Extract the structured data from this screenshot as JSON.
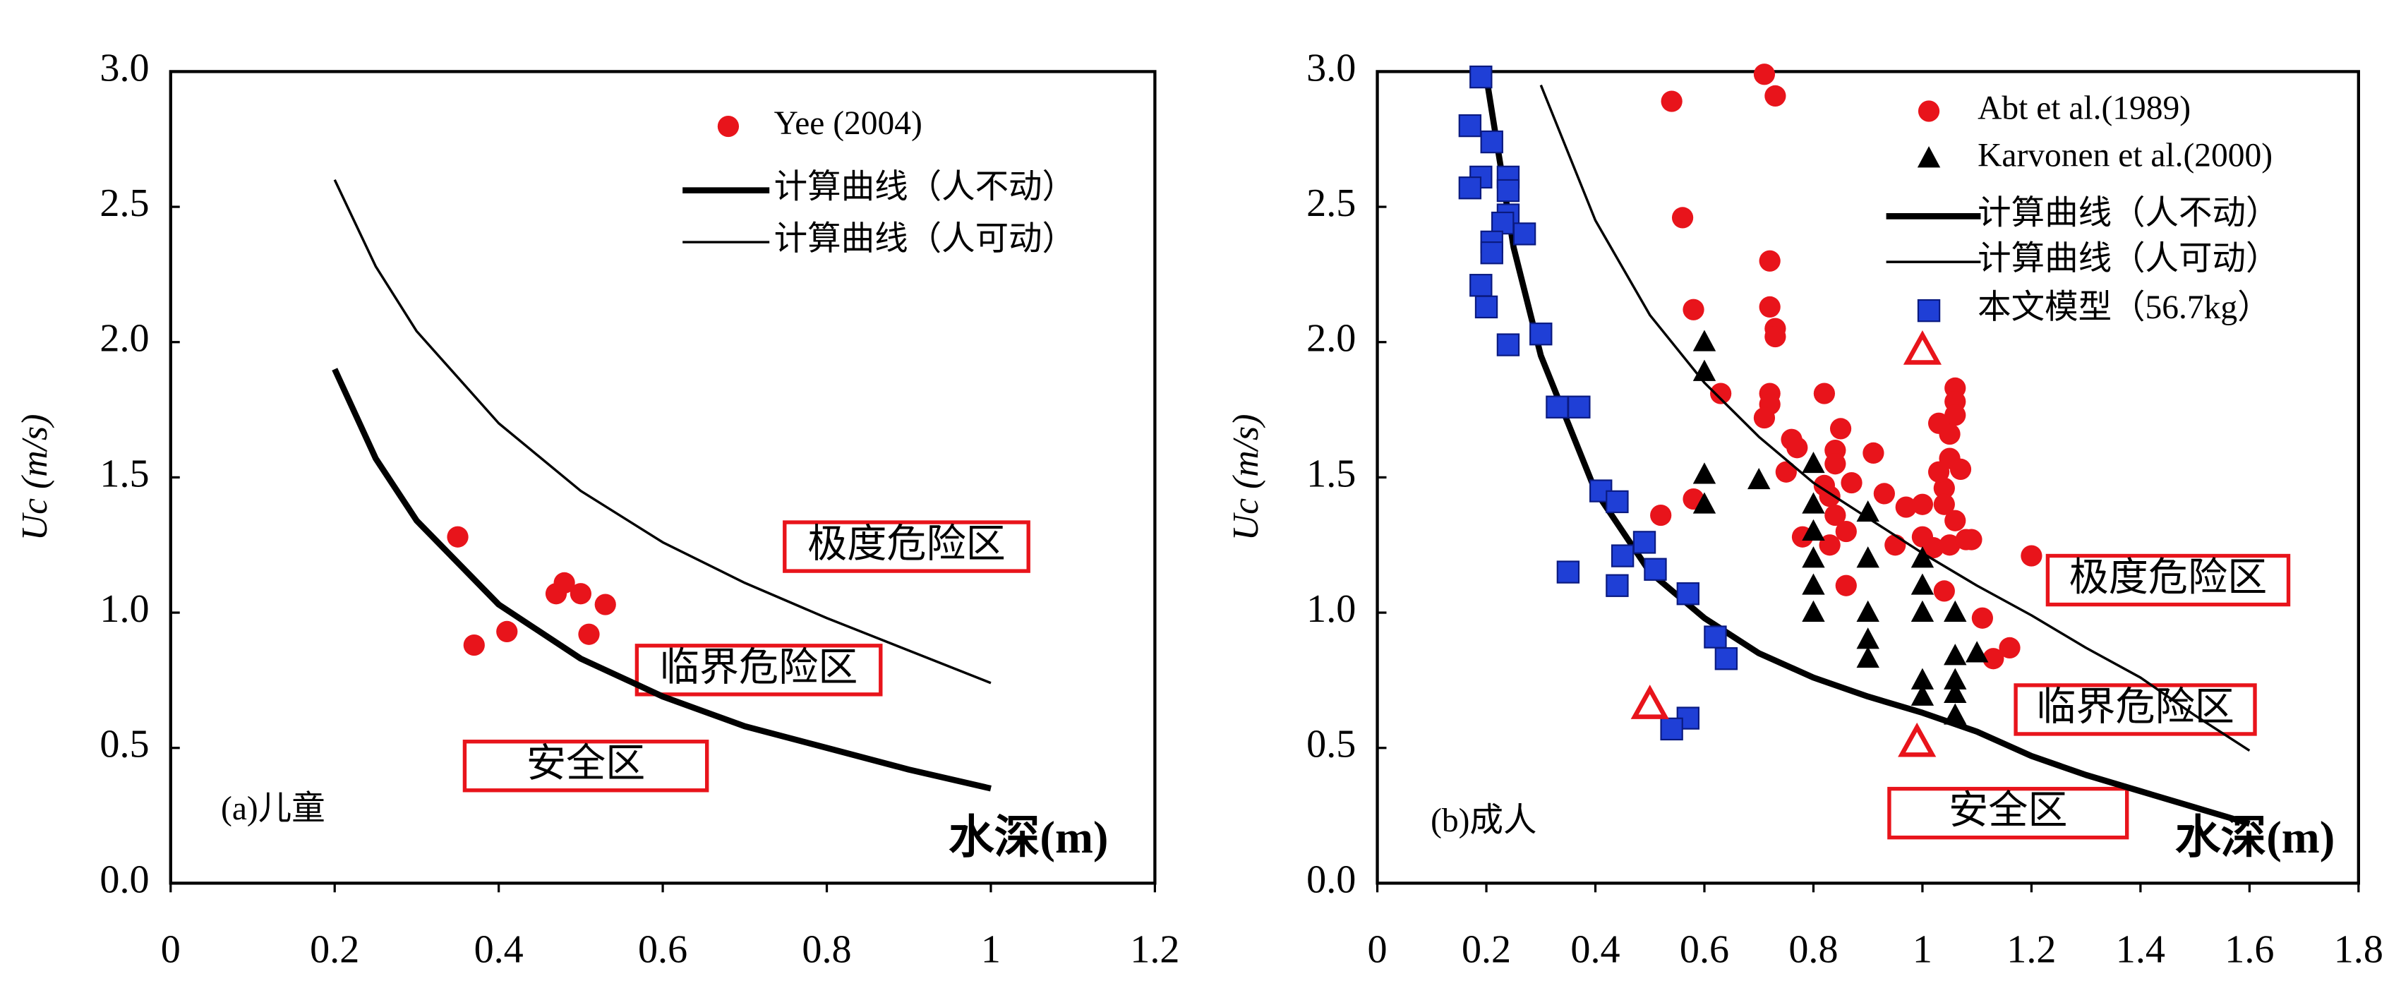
{
  "chart_data": [
    {
      "type": "scatter",
      "ylabel": "Uc (m/s)",
      "xlabel": "水深(m)",
      "panel_label": "(a)儿童",
      "zones": [
        "极度危险区",
        "临界危险区",
        "安全区"
      ],
      "zone_color": "#e8141b",
      "xlim": [
        0,
        1.2
      ],
      "xticks": [
        0,
        0.2,
        0.4,
        0.6,
        0.8,
        1,
        1.2
      ],
      "ylim": [
        0,
        3.0
      ],
      "yticks": [
        {
          "value": 0,
          "label": "0.0"
        },
        0.5,
        {
          "value": 1,
          "label": "1.0"
        },
        1.5,
        {
          "value": 2,
          "label": "2.0"
        },
        2.5,
        {
          "value": 3,
          "label": "3.0"
        }
      ],
      "series": [
        {
          "name": "Yee (2004)",
          "style": "circle",
          "color": "#e8141b",
          "x": [
            0.35,
            0.37,
            0.41,
            0.47,
            0.48,
            0.5,
            0.51,
            0.53
          ],
          "values": [
            1.28,
            0.88,
            0.93,
            1.07,
            1.11,
            1.07,
            0.92,
            1.03
          ]
        },
        {
          "name": "计算曲线（人不动）",
          "style": "line",
          "width": 4,
          "color": "#000000",
          "x": [
            0.2,
            0.25,
            0.3,
            0.4,
            0.5,
            0.6,
            0.7,
            0.8,
            0.9,
            1.0
          ],
          "values": [
            1.9,
            1.57,
            1.34,
            1.03,
            0.83,
            0.69,
            0.58,
            0.5,
            0.42,
            0.35
          ]
        },
        {
          "name": "计算曲线（人可动）",
          "style": "line",
          "width": 1.6,
          "color": "#000000",
          "x": [
            0.2,
            0.25,
            0.3,
            0.4,
            0.5,
            0.6,
            0.7,
            0.8,
            0.9,
            1.0
          ],
          "values": [
            2.6,
            2.28,
            2.04,
            1.7,
            1.45,
            1.26,
            1.11,
            0.98,
            0.86,
            0.74
          ]
        }
      ]
    },
    {
      "type": "scatter",
      "ylabel": "Uc (m/s)",
      "xlabel": "水深(m)",
      "panel_label": "(b)成人",
      "zones": [
        "极度危险区",
        "临界危险区",
        "安全区"
      ],
      "zone_color": "#e8141b",
      "xlim": [
        0,
        1.8
      ],
      "xticks": [
        0,
        0.2,
        0.4,
        0.6,
        0.8,
        1,
        1.2,
        1.4,
        1.6,
        1.8
      ],
      "ylim": [
        0,
        3.0
      ],
      "yticks": [
        {
          "value": 0,
          "label": "0.0"
        },
        0.5,
        {
          "value": 1,
          "label": "1.0"
        },
        1.5,
        {
          "value": 2,
          "label": "2.0"
        },
        2.5,
        {
          "value": 3,
          "label": "3.0"
        }
      ],
      "series": [
        {
          "name": "Abt et al.(1989)",
          "style": "circle",
          "color": "#e8141b",
          "x": [
            0.71,
            0.54,
            0.73,
            0.56,
            0.72,
            0.72,
            0.73,
            0.73,
            0.58,
            0.63,
            0.72,
            0.72,
            0.71,
            0.82,
            0.76,
            0.77,
            0.85,
            0.84,
            0.91,
            0.84,
            0.75,
            0.82,
            0.87,
            0.93,
            0.97,
            1.0,
            0.58,
            0.52,
            0.83,
            0.84,
            0.86,
            0.78,
            0.83,
            0.95,
            1.0,
            1.02,
            1.05,
            1.09,
            1.06,
            1.06,
            1.06,
            1.05,
            1.03,
            1.05,
            1.07,
            1.04,
            1.06,
            1.08,
            1.04,
            0.86,
            1.11,
            1.13,
            1.16,
            1.2,
            1.04,
            1.03
          ],
          "values": [
            2.99,
            2.89,
            2.91,
            2.46,
            2.3,
            2.13,
            2.05,
            2.02,
            2.12,
            1.81,
            1.81,
            1.77,
            1.72,
            1.81,
            1.64,
            1.61,
            1.68,
            1.6,
            1.59,
            1.55,
            1.52,
            1.47,
            1.48,
            1.44,
            1.39,
            1.4,
            1.42,
            1.36,
            1.43,
            1.36,
            1.3,
            1.28,
            1.25,
            1.25,
            1.28,
            1.24,
            1.25,
            1.27,
            1.83,
            1.78,
            1.73,
            1.66,
            1.7,
            1.57,
            1.53,
            1.46,
            1.34,
            1.27,
            1.08,
            1.1,
            0.98,
            0.83,
            0.87,
            1.21,
            1.4,
            1.52
          ]
        },
        {
          "name": "Karvonen et al.(2000)",
          "style": "triangle",
          "color": "#000000",
          "x": [
            0.6,
            0.6,
            0.6,
            0.6,
            0.7,
            0.8,
            0.8,
            0.8,
            0.8,
            0.8,
            0.8,
            0.9,
            0.9,
            0.9,
            0.9,
            0.9,
            1.0,
            1.0,
            1.0,
            1.0,
            1.0,
            1.06,
            1.06,
            1.06,
            1.06,
            1.06,
            1.1
          ],
          "values": [
            2.0,
            1.89,
            1.51,
            1.4,
            1.49,
            1.55,
            1.4,
            1.3,
            1.2,
            1.1,
            1.0,
            1.37,
            1.2,
            1.0,
            0.9,
            0.83,
            1.2,
            1.1,
            1.0,
            0.75,
            0.69,
            1.0,
            0.84,
            0.75,
            0.7,
            0.62,
            0.85
          ]
        },
        {
          "name": "计算曲线（人不动）",
          "style": "line",
          "width": 4,
          "color": "#000000",
          "x": [
            0.2,
            0.25,
            0.3,
            0.4,
            0.5,
            0.6,
            0.7,
            0.8,
            0.9,
            1.0,
            1.1,
            1.2,
            1.3,
            1.4,
            1.5,
            1.6
          ],
          "values": [
            2.98,
            2.35,
            1.95,
            1.45,
            1.15,
            0.98,
            0.85,
            0.76,
            0.69,
            0.63,
            0.56,
            0.47,
            0.4,
            0.34,
            0.28,
            0.22
          ]
        },
        {
          "name": "计算曲线（人可动）",
          "style": "line",
          "width": 1.6,
          "color": "#000000",
          "x": [
            0.3,
            0.4,
            0.5,
            0.6,
            0.7,
            0.8,
            0.9,
            1.0,
            1.1,
            1.2,
            1.3,
            1.4,
            1.5,
            1.6
          ],
          "values": [
            2.95,
            2.45,
            2.1,
            1.85,
            1.65,
            1.48,
            1.35,
            1.22,
            1.1,
            0.99,
            0.87,
            0.76,
            0.62,
            0.49
          ]
        },
        {
          "name": "本文模型（56.7kg）",
          "style": "square",
          "color": "#1f3fd6",
          "x": [
            0.19,
            0.17,
            0.19,
            0.17,
            0.21,
            0.24,
            0.24,
            0.24,
            0.23,
            0.27,
            0.21,
            0.21,
            0.19,
            0.2,
            0.24,
            0.3,
            0.33,
            0.37,
            0.41,
            0.44,
            0.35,
            0.49,
            0.45,
            0.51,
            0.44,
            0.57,
            0.62,
            0.64,
            0.57,
            0.54
          ],
          "values": [
            2.98,
            2.8,
            2.61,
            2.57,
            2.74,
            2.61,
            2.56,
            2.47,
            2.44,
            2.4,
            2.37,
            2.33,
            2.21,
            2.13,
            1.99,
            2.03,
            1.76,
            1.76,
            1.45,
            1.41,
            1.15,
            1.26,
            1.21,
            1.16,
            1.1,
            1.07,
            0.91,
            0.83,
            0.61,
            0.57
          ]
        },
        {
          "style": "open-triangle",
          "color": "#e8141b",
          "x": [
            0.5,
            1.0,
            0.99
          ],
          "values": [
            0.66,
            1.97,
            0.52
          ]
        }
      ]
    }
  ]
}
